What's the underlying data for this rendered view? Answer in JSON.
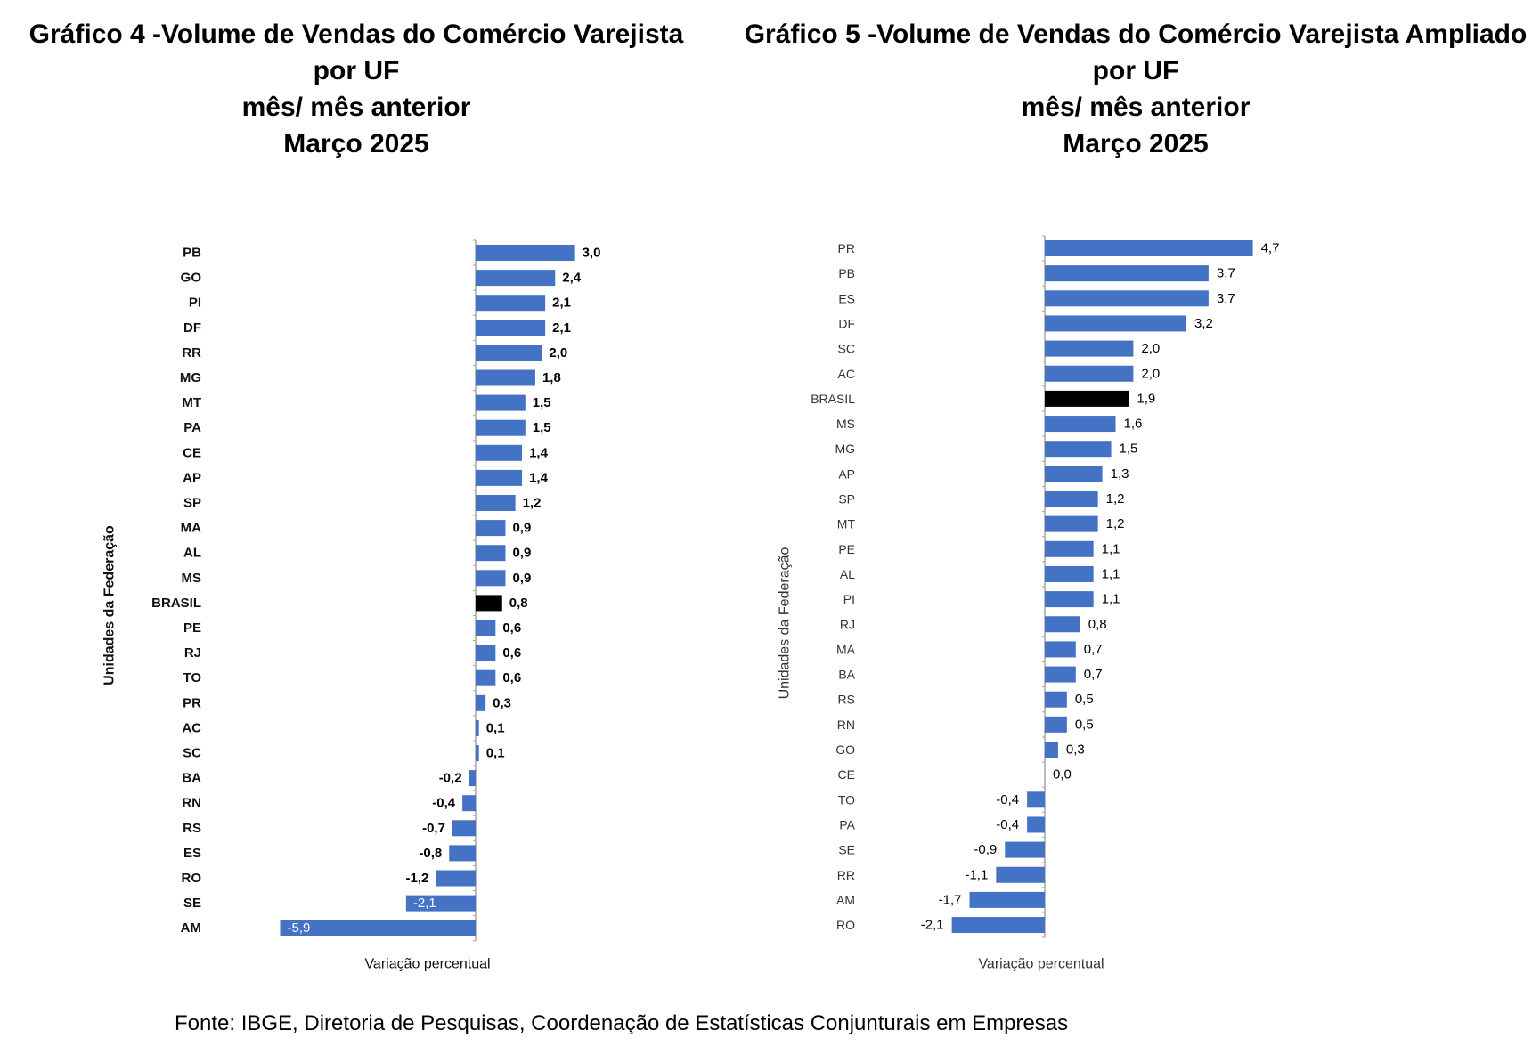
{
  "chart_data": [
    {
      "type": "bar",
      "orientation": "horizontal",
      "title_lines": [
        "Gráfico 4 -Volume de Vendas do Comércio Varejista",
        "por UF",
        "mês/ mês anterior",
        "Março 2025"
      ],
      "ylabel": "Unidades da Federação",
      "xlabel": "Variação percentual",
      "highlight_category": "BRASIL",
      "bar_color": "#4472C4",
      "highlight_color": "#000000",
      "categories": [
        "PB",
        "GO",
        "PI",
        "DF",
        "RR",
        "MG",
        "MT",
        "PA",
        "CE",
        "AP",
        "SP",
        "MA",
        "AL",
        "MS",
        "BRASIL",
        "PE",
        "RJ",
        "TO",
        "PR",
        "AC",
        "SC",
        "BA",
        "RN",
        "RS",
        "ES",
        "RO",
        "SE",
        "AM"
      ],
      "values": [
        3.0,
        2.4,
        2.1,
        2.1,
        2.0,
        1.8,
        1.5,
        1.5,
        1.4,
        1.4,
        1.2,
        0.9,
        0.9,
        0.9,
        0.8,
        0.6,
        0.6,
        0.6,
        0.3,
        0.1,
        0.1,
        -0.2,
        -0.4,
        -0.7,
        -0.8,
        -1.2,
        -2.1,
        -5.9
      ],
      "value_labels": [
        "3,0",
        "2,4",
        "2,1",
        "2,1",
        "2,0",
        "1,8",
        "1,5",
        "1,5",
        "1,4",
        "1,4",
        "1,2",
        "0,9",
        "0,9",
        "0,9",
        "0,8",
        "0,6",
        "0,6",
        "0,6",
        "0,3",
        "0,1",
        "0,1",
        "-0,2",
        "-0,4",
        "-0,7",
        "-0,8",
        "-1,2",
        "-2,1",
        "-5,9"
      ]
    },
    {
      "type": "bar",
      "orientation": "horizontal",
      "title_lines": [
        "Gráfico 5 -Volume de Vendas do Comércio Varejista Ampliado",
        "por UF",
        "mês/ mês anterior",
        "Março 2025"
      ],
      "ylabel": "Unidades da Federação",
      "xlabel": "Variação percentual",
      "highlight_category": "BRASIL",
      "bar_color": "#4472C4",
      "highlight_color": "#000000",
      "categories": [
        "PR",
        "PB",
        "ES",
        "DF",
        "SC",
        "AC",
        "BRASIL",
        "MS",
        "MG",
        "AP",
        "SP",
        "MT",
        "PE",
        "AL",
        "PI",
        "RJ",
        "MA",
        "BA",
        "RS",
        "RN",
        "GO",
        "CE",
        "TO",
        "PA",
        "SE",
        "RR",
        "AM",
        "RO"
      ],
      "values": [
        4.7,
        3.7,
        3.7,
        3.2,
        2.0,
        2.0,
        1.9,
        1.6,
        1.5,
        1.3,
        1.2,
        1.2,
        1.1,
        1.1,
        1.1,
        0.8,
        0.7,
        0.7,
        0.5,
        0.5,
        0.3,
        0.0,
        -0.4,
        -0.4,
        -0.9,
        -1.1,
        -1.7,
        -2.1
      ],
      "value_labels": [
        "4,7",
        "3,7",
        "3,7",
        "3,2",
        "2,0",
        "2,0",
        "1,9",
        "1,6",
        "1,5",
        "1,3",
        "1,2",
        "1,2",
        "1,1",
        "1,1",
        "1,1",
        "0,8",
        "0,7",
        "0,7",
        "0,5",
        "0,5",
        "0,3",
        "0,0",
        "-0,4",
        "-0,4",
        "-0,9",
        "-1,1",
        "-1,7",
        "-2,1"
      ]
    }
  ],
  "source_text": "Fonte: IBGE, Diretoria de Pesquisas, Coordenação de Estatísticas Conjunturais em Empresas"
}
